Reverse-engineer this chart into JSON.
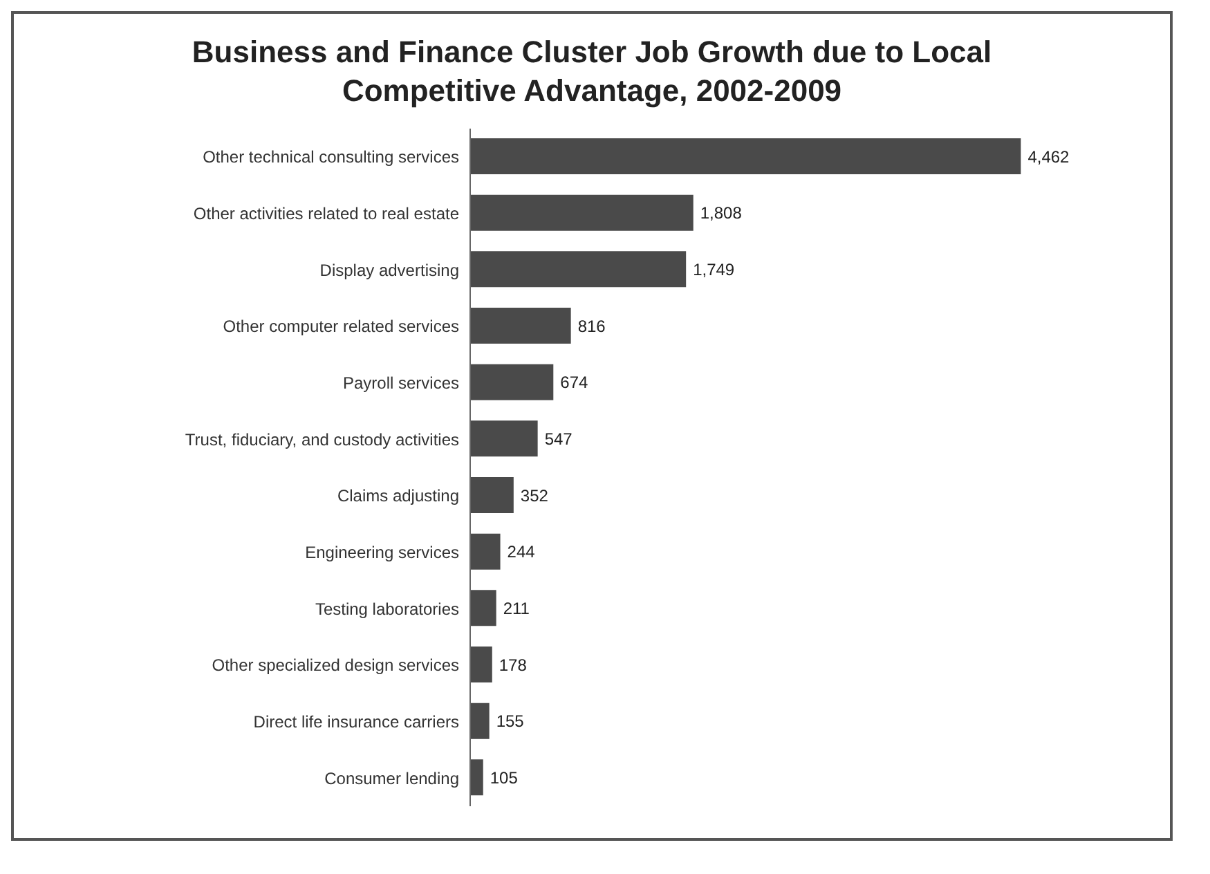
{
  "chart_data": {
    "type": "bar",
    "orientation": "horizontal",
    "title": "Business and Finance Cluster Job Growth due to Local Competitive Advantage, 2002-2009",
    "categories": [
      "Other technical consulting services",
      "Other activities related to real estate",
      "Display advertising",
      "Other computer related services",
      "Payroll services",
      "Trust, fiduciary, and custody activities",
      "Claims adjusting",
      "Engineering services",
      "Testing laboratories",
      "Other specialized design services",
      "Direct life insurance carriers",
      "Consumer lending"
    ],
    "values": [
      4462,
      1808,
      1749,
      816,
      674,
      547,
      352,
      244,
      211,
      178,
      155,
      105
    ],
    "value_labels": [
      "4,462",
      "1,808",
      "1,749",
      "816",
      "674",
      "547",
      "352",
      "244",
      "211",
      "178",
      "155",
      "105"
    ],
    "color": "#4a4a4a"
  }
}
